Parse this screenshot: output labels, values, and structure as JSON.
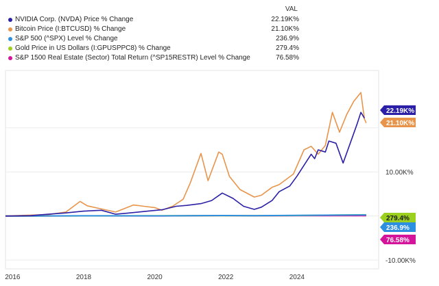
{
  "legend": {
    "header": "VAL",
    "items": [
      {
        "label": "NVIDIA Corp. (NVDA) Price % Change",
        "value": "22.19K%",
        "color": "#2a1fa6"
      },
      {
        "label": "Bitcoin Price (I:BTCUSD) % Change",
        "value": "21.10K%",
        "color": "#e8944a"
      },
      {
        "label": "S&P 500 (^SPX) Level % Change",
        "value": "236.9%",
        "color": "#2c8fe0"
      },
      {
        "label": "Gold Price in US Dollars (I:GPUSPPC8) % Change",
        "value": "279.4%",
        "color": "#9bd11e"
      },
      {
        "label": "S&P 1500 Real Estate (Sector) Total Return (^SP15RESTR) Level % Change",
        "value": "76.58%",
        "color": "#d4149a"
      }
    ]
  },
  "chart_data": {
    "type": "line",
    "title": "",
    "xlabel": "",
    "ylabel": "",
    "x_ticks": [
      "2016",
      "2018",
      "2020",
      "2022",
      "2024"
    ],
    "y_ticks": [
      "10.00K%",
      "-10.00K%"
    ],
    "ylim": [
      -12000,
      33000
    ],
    "xlim": [
      2015.8,
      2026.3
    ],
    "series": [
      {
        "name": "NVIDIA Corp. (NVDA) Price % Change",
        "color": "#2a1fa6",
        "end_label": "22.19K%",
        "points": [
          [
            2015.8,
            0
          ],
          [
            2016.5,
            80
          ],
          [
            2017.0,
            400
          ],
          [
            2017.5,
            700
          ],
          [
            2018.0,
            1100
          ],
          [
            2018.5,
            1300
          ],
          [
            2018.9,
            400
          ],
          [
            2019.3,
            700
          ],
          [
            2019.8,
            1100
          ],
          [
            2020.2,
            1400
          ],
          [
            2020.6,
            2200
          ],
          [
            2020.9,
            2400
          ],
          [
            2021.3,
            2800
          ],
          [
            2021.6,
            3500
          ],
          [
            2021.9,
            5200
          ],
          [
            2022.2,
            4000
          ],
          [
            2022.5,
            2200
          ],
          [
            2022.8,
            1500
          ],
          [
            2023.0,
            2000
          ],
          [
            2023.3,
            3500
          ],
          [
            2023.5,
            5500
          ],
          [
            2023.8,
            6800
          ],
          [
            2024.0,
            9000
          ],
          [
            2024.2,
            11500
          ],
          [
            2024.4,
            14000
          ],
          [
            2024.5,
            13000
          ],
          [
            2024.6,
            15000
          ],
          [
            2024.8,
            14500
          ],
          [
            2024.9,
            17000
          ],
          [
            2025.1,
            16500
          ],
          [
            2025.3,
            12000
          ],
          [
            2025.5,
            16500
          ],
          [
            2025.7,
            21000
          ],
          [
            2025.8,
            23500
          ],
          [
            2025.9,
            22190
          ]
        ]
      },
      {
        "name": "Bitcoin Price (I:BTCUSD) % Change",
        "color": "#e8944a",
        "end_label": "21.10K%",
        "points": [
          [
            2015.8,
            0
          ],
          [
            2016.5,
            200
          ],
          [
            2017.0,
            300
          ],
          [
            2017.5,
            900
          ],
          [
            2017.9,
            3300
          ],
          [
            2018.1,
            2300
          ],
          [
            2018.5,
            1600
          ],
          [
            2018.9,
            900
          ],
          [
            2019.4,
            2500
          ],
          [
            2019.7,
            2200
          ],
          [
            2020.0,
            1900
          ],
          [
            2020.2,
            1300
          ],
          [
            2020.5,
            2200
          ],
          [
            2020.8,
            3800
          ],
          [
            2021.0,
            7500
          ],
          [
            2021.3,
            14200
          ],
          [
            2021.5,
            8000
          ],
          [
            2021.8,
            14500
          ],
          [
            2021.9,
            14000
          ],
          [
            2022.1,
            9000
          ],
          [
            2022.4,
            6000
          ],
          [
            2022.8,
            4300
          ],
          [
            2023.0,
            4700
          ],
          [
            2023.3,
            6500
          ],
          [
            2023.5,
            7100
          ],
          [
            2023.9,
            9500
          ],
          [
            2024.2,
            15000
          ],
          [
            2024.4,
            15800
          ],
          [
            2024.6,
            14000
          ],
          [
            2024.8,
            16000
          ],
          [
            2025.0,
            23500
          ],
          [
            2025.2,
            19000
          ],
          [
            2025.4,
            23000
          ],
          [
            2025.6,
            26000
          ],
          [
            2025.8,
            28000
          ],
          [
            2025.9,
            22000
          ],
          [
            2025.95,
            21100
          ]
        ]
      },
      {
        "name": "S&P 500 (^SPX) Level % Change",
        "color": "#2c8fe0",
        "end_label": "236.9%",
        "points": [
          [
            2015.8,
            0
          ],
          [
            2018.0,
            40
          ],
          [
            2020.2,
            20
          ],
          [
            2021.9,
            110
          ],
          [
            2022.8,
            80
          ],
          [
            2024.0,
            150
          ],
          [
            2025.95,
            236.9
          ]
        ]
      },
      {
        "name": "Gold Price in US Dollars (I:GPUSPPC8) % Change",
        "color": "#9bd11e",
        "end_label": "279.4%",
        "points": [
          [
            2015.8,
            0
          ],
          [
            2018.0,
            20
          ],
          [
            2020.6,
            60
          ],
          [
            2022.5,
            50
          ],
          [
            2024.0,
            110
          ],
          [
            2025.95,
            279.4
          ]
        ]
      },
      {
        "name": "S&P 1500 Real Estate (Sector) Total Return (^SP15RESTR) Level % Change",
        "color": "#d4149a",
        "end_label": "76.58%",
        "points": [
          [
            2015.8,
            0
          ],
          [
            2018.0,
            30
          ],
          [
            2020.2,
            15
          ],
          [
            2021.9,
            90
          ],
          [
            2022.8,
            40
          ],
          [
            2024.0,
            50
          ],
          [
            2025.95,
            76.58
          ]
        ]
      }
    ]
  }
}
